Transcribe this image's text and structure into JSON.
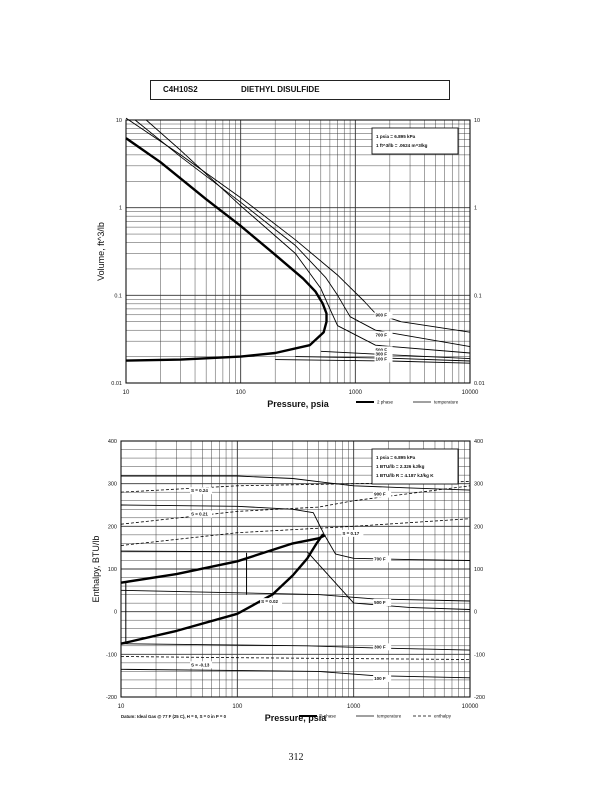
{
  "title": {
    "formula": "C4H10S2",
    "name": "DIETHYL DISULFIDE"
  },
  "page_number": "312",
  "chart_data": [
    {
      "type": "line",
      "xscale": "log",
      "yscale": "log",
      "xlim": [
        10,
        10000
      ],
      "ylim": [
        0.01,
        10
      ],
      "xlabel": "Pressure,  psia",
      "ylabel": "Volume, ft^3/lb",
      "x_ticks": [
        "10",
        "100",
        "1000",
        "10000"
      ],
      "y_ticks": [
        "0.01",
        "0.1",
        "1",
        "10"
      ],
      "y_ticks_right": [
        "0.01",
        "0.1",
        "1",
        "10"
      ],
      "conversion_box": [
        "1 psia  =  6.895 kPa",
        "1 ft^3/lb  =  .0624 m^3/kg"
      ],
      "legend": [
        "2 phase",
        "temperature"
      ],
      "series": [
        {
          "name": "2 phase",
          "style": "heavy",
          "points": [
            [
              10,
              6.2
            ],
            [
              20,
              3.3
            ],
            [
              50,
              1.25
            ],
            [
              100,
              0.62
            ],
            [
              200,
              0.29
            ],
            [
              350,
              0.155
            ],
            [
              450,
              0.11
            ],
            [
              520,
              0.08
            ],
            [
              560,
              0.062
            ],
            [
              560,
              0.05
            ],
            [
              530,
              0.038
            ],
            [
              400,
              0.027
            ],
            [
              200,
              0.022
            ],
            [
              100,
              0.02
            ],
            [
              30,
              0.0185
            ],
            [
              10,
              0.018
            ]
          ]
        },
        {
          "name": "",
          "style": "light",
          "points": [
            [
              10,
              10.5
            ],
            [
              30,
              4
            ],
            [
              100,
              1.3
            ],
            [
              300,
              0.43
            ],
            [
              700,
              0.17
            ],
            [
              1200,
              0.085
            ],
            [
              1500,
              0.062
            ],
            [
              2500,
              0.05
            ],
            [
              10000,
              0.038
            ]
          ]
        },
        {
          "name": "",
          "style": "light",
          "points": [
            [
              12,
              10
            ],
            [
              30,
              3.8
            ],
            [
              100,
              1.15
            ],
            [
              300,
              0.37
            ],
            [
              550,
              0.16
            ],
            [
              700,
              0.1
            ],
            [
              900,
              0.057
            ],
            [
              1500,
              0.04
            ],
            [
              10000,
              0.026
            ]
          ]
        },
        {
          "name": "",
          "style": "light",
          "points": [
            [
              15,
              10
            ],
            [
              30,
              4.5
            ],
            [
              100,
              1.05
            ],
            [
              300,
              0.3
            ],
            [
              500,
              0.12
            ],
            [
              600,
              0.07
            ],
            [
              700,
              0.045
            ],
            [
              1500,
              0.027
            ],
            [
              10000,
              0.022
            ]
          ]
        },
        {
          "name": "",
          "style": "light",
          "points": [
            [
              500,
              0.023
            ],
            [
              2000,
              0.021
            ],
            [
              10000,
              0.019
            ]
          ]
        },
        {
          "name": "",
          "style": "light",
          "points": [
            [
              300,
              0.02
            ],
            [
              2000,
              0.0192
            ],
            [
              10000,
              0.0178
            ]
          ]
        },
        {
          "name": "",
          "style": "light",
          "points": [
            [
              200,
              0.0185
            ],
            [
              2000,
              0.0178
            ],
            [
              10000,
              0.0168
            ]
          ]
        }
      ],
      "isotherm_labels": [
        {
          "text": "900 F",
          "x": 1500,
          "y": 0.057
        },
        {
          "text": "700 F",
          "x": 1500,
          "y": 0.034
        },
        {
          "text": "500 F",
          "x": 1500,
          "y": 0.023
        },
        {
          "text": "300 F",
          "x": 1500,
          "y": 0.0205
        },
        {
          "text": "100 F",
          "x": 1500,
          "y": 0.018
        }
      ]
    },
    {
      "type": "line",
      "xscale": "log",
      "yscale": "linear",
      "xlim": [
        10,
        10000
      ],
      "ylim": [
        -200,
        400
      ],
      "xlabel": "Pressure,  psia",
      "ylabel": "Enthalpy, BTU/lb",
      "x_ticks": [
        "10",
        "100",
        "1000",
        "10000"
      ],
      "y_ticks": [
        "-200",
        "-100",
        "0",
        "100",
        "200",
        "300",
        "400"
      ],
      "y_ticks_right": [
        "-200",
        "-100",
        "0",
        "100",
        "200",
        "300",
        "400"
      ],
      "conversion_box": [
        "1 psia  =  6.895 kPa",
        "1 BTU/lb  =  2.326 kJ/kg",
        "1 BTU/lb R  =  4.187 kJ/kg K"
      ],
      "legend": [
        "2 phase",
        "temperature",
        "enthalpy"
      ],
      "footnote": "Datum: Ideal Gas @ 77 F (25 C),  H = 0,  S = 0 in P = 0",
      "series": [
        {
          "name": "2 phase",
          "style": "heavy",
          "points": [
            [
              10,
              -75
            ],
            [
              30,
              -45
            ],
            [
              100,
              -5
            ],
            [
              200,
              40
            ],
            [
              300,
              85
            ],
            [
              400,
              125
            ],
            [
              480,
              160
            ],
            [
              540,
              180
            ],
            [
              560,
              178
            ],
            [
              500,
              172
            ],
            [
              300,
              160
            ],
            [
              100,
              118
            ],
            [
              30,
              88
            ],
            [
              10,
              68
            ]
          ]
        },
        {
          "name": "",
          "style": "light",
          "points": [
            [
              10,
              318
            ],
            [
              100,
              318
            ],
            [
              300,
              312
            ],
            [
              600,
              302
            ],
            [
              1000,
              295
            ],
            [
              3000,
              290
            ],
            [
              10000,
              285
            ]
          ]
        },
        {
          "name": "",
          "style": "light",
          "points": [
            [
              10,
              250
            ],
            [
              100,
              247
            ],
            [
              300,
              240
            ],
            [
              450,
              232
            ],
            [
              560,
              180
            ],
            [
              700,
              135
            ],
            [
              1000,
              125
            ],
            [
              3000,
              122
            ],
            [
              10000,
              120
            ]
          ]
        },
        {
          "name": "",
          "style": "light",
          "points": [
            [
              10,
              142
            ],
            [
              200,
              140
            ],
            [
              400,
              140
            ],
            [
              1000,
              20
            ],
            [
              3000,
              10
            ],
            [
              10000,
              5
            ]
          ]
        },
        {
          "name": "",
          "style": "light",
          "points": [
            [
              10,
              50
            ],
            [
              500,
              40
            ],
            [
              1500,
              30
            ],
            [
              10000,
              25
            ]
          ]
        },
        {
          "name": "",
          "style": "light",
          "points": [
            [
              10,
              -75
            ],
            [
              400,
              -80
            ],
            [
              1500,
              -85
            ],
            [
              10000,
              -90
            ]
          ]
        },
        {
          "name": "",
          "style": "light",
          "points": [
            [
              10,
              -135
            ],
            [
              500,
              -140
            ],
            [
              1500,
              -150
            ],
            [
              10000,
              -155
            ]
          ]
        }
      ],
      "entropy_lines": [
        {
          "points": [
            [
              10,
              280
            ],
            [
              100,
              295
            ],
            [
              1000,
              300
            ],
            [
              10000,
              305
            ]
          ]
        },
        {
          "points": [
            [
              10,
              205
            ],
            [
              100,
              235
            ],
            [
              500,
              245
            ],
            [
              1000,
              260
            ],
            [
              10000,
              295
            ]
          ]
        },
        {
          "points": [
            [
              10,
              155
            ],
            [
              100,
              185
            ],
            [
              1000,
              200
            ],
            [
              10000,
              218
            ]
          ]
        },
        {
          "points": [
            [
              10,
              -105
            ],
            [
              100,
              -108
            ],
            [
              1000,
              -110
            ],
            [
              10000,
              -112
            ]
          ]
        }
      ],
      "vertical_lines": [
        {
          "x": 11,
          "y": [
            -75,
            68
          ]
        },
        {
          "x": 120,
          "y": [
            40,
            138
          ]
        }
      ],
      "isotherm_labels": [
        {
          "text": "900 F",
          "x": 1500,
          "y": 272
        },
        {
          "text": "700 F",
          "x": 1500,
          "y": 120
        },
        {
          "text": "500 F",
          "x": 1500,
          "y": 18
        },
        {
          "text": "300 F",
          "x": 1500,
          "y": -86
        },
        {
          "text": "100 F",
          "x": 1500,
          "y": -160
        }
      ],
      "entropy_labels": [
        {
          "text": "S = 0.24",
          "x": 40,
          "y": 280
        },
        {
          "text": "S = 0.21",
          "x": 40,
          "y": 225
        },
        {
          "text": "S = 0.17",
          "x": 800,
          "y": 180
        },
        {
          "text": "S = 0.02",
          "x": 160,
          "y": 20
        },
        {
          "text": "S = -0.13",
          "x": 40,
          "y": -128
        }
      ]
    }
  ]
}
